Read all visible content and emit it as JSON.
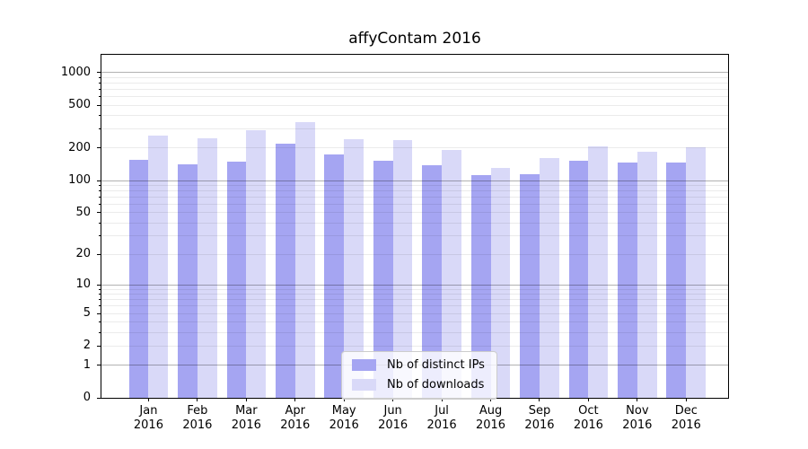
{
  "chart_data": {
    "type": "bar",
    "title": "affyContam 2016",
    "y_scale": "log1p",
    "grid": true,
    "categories": [
      "Jan",
      "Feb",
      "Mar",
      "Apr",
      "May",
      "Jun",
      "Jul",
      "Aug",
      "Sep",
      "Oct",
      "Nov",
      "Dec"
    ],
    "x_year": "2016",
    "series": [
      {
        "name": "Nb of distinct IPs",
        "color": "#a5a5f2",
        "values": [
          156,
          142,
          149,
          220,
          175,
          152,
          140,
          112,
          114,
          152,
          147,
          148
        ]
      },
      {
        "name": "Nb of downloads",
        "color": "#d9d9f8",
        "values": [
          262,
          245,
          291,
          348,
          242,
          239,
          193,
          131,
          161,
          207,
          186,
          202
        ]
      }
    ],
    "yticks": [
      0,
      1,
      2,
      5,
      10,
      20,
      50,
      100,
      200,
      500,
      1000
    ],
    "ylim": [
      0,
      1460
    ],
    "legend_position": "lower-center"
  }
}
